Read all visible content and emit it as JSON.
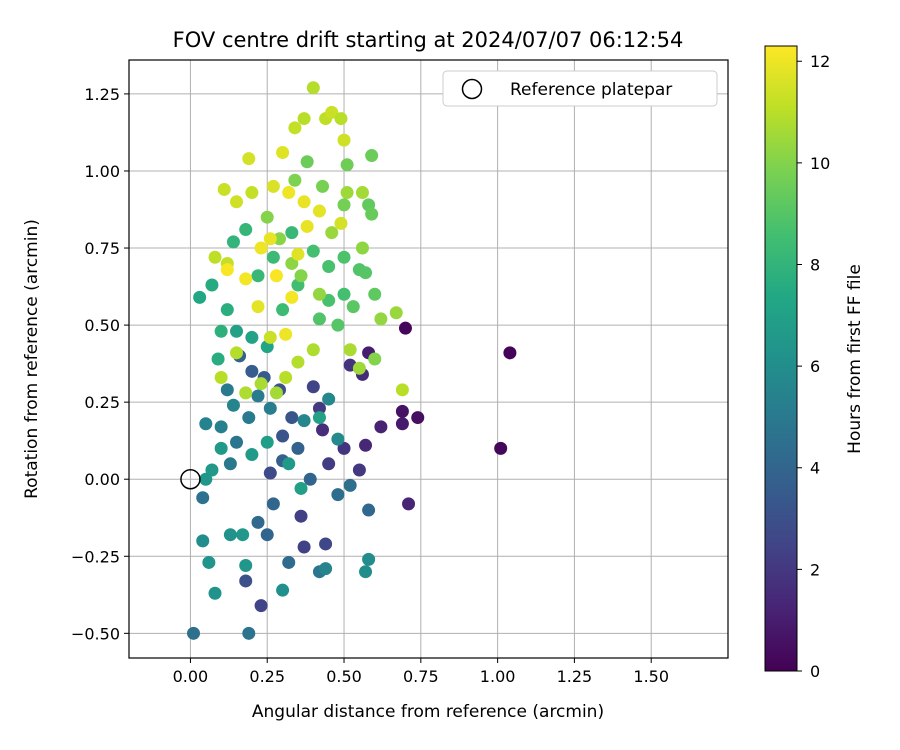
{
  "chart_data": {
    "type": "scatter",
    "title": "FOV centre drift starting at 2024/07/07 06:12:54",
    "xlabel": "Angular distance from reference (arcmin)",
    "ylabel": "Rotation from reference (arcmin)",
    "colorbar_label": "Hours from first FF file",
    "xlim": [
      -0.2,
      1.75
    ],
    "ylim": [
      -0.58,
      1.36
    ],
    "xticks": [
      0.0,
      0.25,
      0.5,
      0.75,
      1.0,
      1.25,
      1.5
    ],
    "xtick_labels": [
      "0.00",
      "0.25",
      "0.50",
      "0.75",
      "1.00",
      "1.25",
      "1.50"
    ],
    "yticks": [
      -0.5,
      -0.25,
      0.0,
      0.25,
      0.5,
      0.75,
      1.0,
      1.25
    ],
    "ytick_labels": [
      "−0.50",
      "−0.25",
      "0.00",
      "0.25",
      "0.50",
      "0.75",
      "1.00",
      "1.25"
    ],
    "colorbar_range": [
      0,
      12.3
    ],
    "colorbar_ticks": [
      0,
      2,
      4,
      6,
      8,
      10,
      12
    ],
    "colorbar_tick_labels": [
      "0",
      "2",
      "4",
      "6",
      "8",
      "10",
      "12"
    ],
    "colormap": "viridis",
    "grid": true,
    "legend": {
      "placement": "top-right",
      "label": "Reference platepar"
    },
    "reference_point": {
      "x": 0.0,
      "y": 0.0
    },
    "points": [
      {
        "x": 0.7,
        "y": 0.49,
        "h": 0.2
      },
      {
        "x": 1.04,
        "y": 0.41,
        "h": 0.1
      },
      {
        "x": 1.01,
        "y": 0.1,
        "h": 0.2
      },
      {
        "x": 0.74,
        "y": 0.2,
        "h": 0.5
      },
      {
        "x": 0.69,
        "y": 0.22,
        "h": 0.6
      },
      {
        "x": 0.69,
        "y": 0.18,
        "h": 0.9
      },
      {
        "x": 0.71,
        "y": -0.08,
        "h": 1.3
      },
      {
        "x": 0.62,
        "y": 0.17,
        "h": 1.2
      },
      {
        "x": 0.57,
        "y": 0.11,
        "h": 1.4
      },
      {
        "x": 0.58,
        "y": 0.41,
        "h": 1.0
      },
      {
        "x": 0.56,
        "y": 0.34,
        "h": 1.5
      },
      {
        "x": 0.52,
        "y": 0.37,
        "h": 1.8
      },
      {
        "x": 0.55,
        "y": 0.03,
        "h": 2.0
      },
      {
        "x": 0.5,
        "y": 0.1,
        "h": 1.9
      },
      {
        "x": 0.45,
        "y": 0.05,
        "h": 2.2
      },
      {
        "x": 0.43,
        "y": 0.16,
        "h": 1.6
      },
      {
        "x": 0.42,
        "y": 0.23,
        "h": 2.1
      },
      {
        "x": 0.4,
        "y": 0.3,
        "h": 2.5
      },
      {
        "x": 0.36,
        "y": -0.12,
        "h": 2.3
      },
      {
        "x": 0.37,
        "y": -0.22,
        "h": 2.4
      },
      {
        "x": 0.44,
        "y": -0.21,
        "h": 2.6
      },
      {
        "x": 0.23,
        "y": -0.41,
        "h": 2.5
      },
      {
        "x": 0.18,
        "y": -0.33,
        "h": 3.0
      },
      {
        "x": 0.26,
        "y": 0.02,
        "h": 2.8
      },
      {
        "x": 0.3,
        "y": 0.14,
        "h": 3.2
      },
      {
        "x": 0.33,
        "y": 0.2,
        "h": 3.3
      },
      {
        "x": 0.29,
        "y": 0.29,
        "h": 3.0
      },
      {
        "x": 0.24,
        "y": 0.33,
        "h": 3.5
      },
      {
        "x": 0.2,
        "y": 0.35,
        "h": 3.6
      },
      {
        "x": 0.16,
        "y": 0.4,
        "h": 3.8
      },
      {
        "x": 0.3,
        "y": 0.06,
        "h": 3.7
      },
      {
        "x": 0.35,
        "y": 0.1,
        "h": 3.9
      },
      {
        "x": 0.39,
        "y": 0.0,
        "h": 4.0
      },
      {
        "x": 0.27,
        "y": -0.08,
        "h": 4.1
      },
      {
        "x": 0.22,
        "y": -0.14,
        "h": 4.2
      },
      {
        "x": 0.32,
        "y": -0.27,
        "h": 4.3
      },
      {
        "x": 0.25,
        "y": -0.18,
        "h": 4.0
      },
      {
        "x": 0.48,
        "y": -0.05,
        "h": 4.4
      },
      {
        "x": 0.52,
        "y": -0.02,
        "h": 4.5
      },
      {
        "x": 0.58,
        "y": -0.1,
        "h": 4.2
      },
      {
        "x": 0.42,
        "y": -0.3,
        "h": 4.8
      },
      {
        "x": 0.04,
        "y": -0.06,
        "h": 4.6
      },
      {
        "x": 0.01,
        "y": -0.5,
        "h": 4.5
      },
      {
        "x": 0.19,
        "y": -0.5,
        "h": 4.7
      },
      {
        "x": 0.13,
        "y": 0.05,
        "h": 4.9
      },
      {
        "x": 0.15,
        "y": 0.12,
        "h": 4.8
      },
      {
        "x": 0.19,
        "y": 0.2,
        "h": 5.0
      },
      {
        "x": 0.22,
        "y": 0.27,
        "h": 5.1
      },
      {
        "x": 0.26,
        "y": 0.23,
        "h": 5.2
      },
      {
        "x": 0.1,
        "y": 0.17,
        "h": 5.3
      },
      {
        "x": 0.05,
        "y": 0.18,
        "h": 5.4
      },
      {
        "x": 0.14,
        "y": 0.24,
        "h": 5.5
      },
      {
        "x": 0.12,
        "y": 0.29,
        "h": 5.0
      },
      {
        "x": 0.37,
        "y": 0.19,
        "h": 5.6
      },
      {
        "x": 0.45,
        "y": 0.26,
        "h": 5.7
      },
      {
        "x": 0.48,
        "y": 0.13,
        "h": 5.8
      },
      {
        "x": 0.58,
        "y": -0.26,
        "h": 5.9
      },
      {
        "x": 0.57,
        "y": -0.3,
        "h": 6.0
      },
      {
        "x": 0.44,
        "y": -0.29,
        "h": 5.5
      },
      {
        "x": 0.3,
        "y": -0.36,
        "h": 6.1
      },
      {
        "x": 0.08,
        "y": -0.37,
        "h": 6.2
      },
      {
        "x": 0.06,
        "y": -0.27,
        "h": 6.3
      },
      {
        "x": 0.04,
        "y": -0.2,
        "h": 5.9
      },
      {
        "x": 0.18,
        "y": -0.28,
        "h": 6.4
      },
      {
        "x": 0.17,
        "y": -0.18,
        "h": 6.5
      },
      {
        "x": 0.13,
        "y": -0.18,
        "h": 6.2
      },
      {
        "x": 0.1,
        "y": 0.1,
        "h": 6.6
      },
      {
        "x": 0.07,
        "y": 0.03,
        "h": 6.5
      },
      {
        "x": 0.05,
        "y": 0.0,
        "h": 6.4
      },
      {
        "x": 0.2,
        "y": 0.08,
        "h": 6.7
      },
      {
        "x": 0.25,
        "y": 0.12,
        "h": 6.8
      },
      {
        "x": 0.32,
        "y": 0.05,
        "h": 6.6
      },
      {
        "x": 0.36,
        "y": -0.03,
        "h": 6.9
      },
      {
        "x": 0.42,
        "y": 0.2,
        "h": 7.0
      },
      {
        "x": 0.15,
        "y": 0.48,
        "h": 7.0
      },
      {
        "x": 0.2,
        "y": 0.46,
        "h": 7.1
      },
      {
        "x": 0.25,
        "y": 0.43,
        "h": 7.2
      },
      {
        "x": 0.03,
        "y": 0.59,
        "h": 7.3
      },
      {
        "x": 0.07,
        "y": 0.63,
        "h": 7.5
      },
      {
        "x": 0.09,
        "y": 0.39,
        "h": 7.6
      },
      {
        "x": 0.12,
        "y": 0.55,
        "h": 7.7
      },
      {
        "x": 0.1,
        "y": 0.48,
        "h": 7.8
      },
      {
        "x": 0.14,
        "y": 0.77,
        "h": 8.0
      },
      {
        "x": 0.18,
        "y": 0.81,
        "h": 8.1
      },
      {
        "x": 0.22,
        "y": 0.66,
        "h": 8.2
      },
      {
        "x": 0.27,
        "y": 0.72,
        "h": 8.3
      },
      {
        "x": 0.3,
        "y": 0.55,
        "h": 8.4
      },
      {
        "x": 0.35,
        "y": 0.63,
        "h": 8.5
      },
      {
        "x": 0.33,
        "y": 0.8,
        "h": 8.2
      },
      {
        "x": 0.4,
        "y": 0.74,
        "h": 8.6
      },
      {
        "x": 0.45,
        "y": 0.69,
        "h": 8.7
      },
      {
        "x": 0.5,
        "y": 0.72,
        "h": 8.8
      },
      {
        "x": 0.55,
        "y": 0.68,
        "h": 8.9
      },
      {
        "x": 0.57,
        "y": 0.67,
        "h": 9.0
      },
      {
        "x": 0.5,
        "y": 0.6,
        "h": 8.6
      },
      {
        "x": 0.45,
        "y": 0.58,
        "h": 8.7
      },
      {
        "x": 0.42,
        "y": 0.52,
        "h": 8.9
      },
      {
        "x": 0.48,
        "y": 0.5,
        "h": 9.0
      },
      {
        "x": 0.53,
        "y": 0.56,
        "h": 9.1
      },
      {
        "x": 0.6,
        "y": 0.6,
        "h": 9.2
      },
      {
        "x": 0.58,
        "y": 0.89,
        "h": 9.3
      },
      {
        "x": 0.59,
        "y": 0.86,
        "h": 9.4
      },
      {
        "x": 0.59,
        "y": 1.05,
        "h": 9.5
      },
      {
        "x": 0.51,
        "y": 1.02,
        "h": 9.6
      },
      {
        "x": 0.5,
        "y": 0.89,
        "h": 9.7
      },
      {
        "x": 0.43,
        "y": 0.95,
        "h": 9.8
      },
      {
        "x": 0.38,
        "y": 1.03,
        "h": 9.5
      },
      {
        "x": 0.34,
        "y": 0.97,
        "h": 9.9
      },
      {
        "x": 0.25,
        "y": 0.85,
        "h": 10.0
      },
      {
        "x": 0.29,
        "y": 0.78,
        "h": 10.1
      },
      {
        "x": 0.33,
        "y": 0.7,
        "h": 10.2
      },
      {
        "x": 0.36,
        "y": 0.66,
        "h": 10.0
      },
      {
        "x": 0.42,
        "y": 0.6,
        "h": 10.3
      },
      {
        "x": 0.46,
        "y": 0.8,
        "h": 10.4
      },
      {
        "x": 0.51,
        "y": 0.93,
        "h": 10.5
      },
      {
        "x": 0.56,
        "y": 0.93,
        "h": 10.6
      },
      {
        "x": 0.56,
        "y": 0.75,
        "h": 10.2
      },
      {
        "x": 0.62,
        "y": 0.52,
        "h": 10.3
      },
      {
        "x": 0.67,
        "y": 0.54,
        "h": 10.4
      },
      {
        "x": 0.6,
        "y": 0.39,
        "h": 10.0
      },
      {
        "x": 0.55,
        "y": 0.36,
        "h": 10.5
      },
      {
        "x": 0.52,
        "y": 0.42,
        "h": 10.7
      },
      {
        "x": 0.4,
        "y": 0.42,
        "h": 10.8
      },
      {
        "x": 0.35,
        "y": 0.38,
        "h": 10.9
      },
      {
        "x": 0.31,
        "y": 0.33,
        "h": 11.0
      },
      {
        "x": 0.28,
        "y": 0.28,
        "h": 10.6
      },
      {
        "x": 0.23,
        "y": 0.31,
        "h": 10.7
      },
      {
        "x": 0.18,
        "y": 0.28,
        "h": 10.8
      },
      {
        "x": 0.15,
        "y": 0.41,
        "h": 10.9
      },
      {
        "x": 0.1,
        "y": 0.33,
        "h": 11.0
      },
      {
        "x": 0.08,
        "y": 0.72,
        "h": 11.1
      },
      {
        "x": 0.12,
        "y": 0.7,
        "h": 11.2
      },
      {
        "x": 0.11,
        "y": 0.94,
        "h": 11.3
      },
      {
        "x": 0.15,
        "y": 0.9,
        "h": 11.4
      },
      {
        "x": 0.19,
        "y": 1.04,
        "h": 11.5
      },
      {
        "x": 0.2,
        "y": 0.93,
        "h": 11.2
      },
      {
        "x": 0.27,
        "y": 0.95,
        "h": 11.6
      },
      {
        "x": 0.3,
        "y": 1.06,
        "h": 11.7
      },
      {
        "x": 0.34,
        "y": 1.14,
        "h": 11.2
      },
      {
        "x": 0.37,
        "y": 1.17,
        "h": 11.0
      },
      {
        "x": 0.4,
        "y": 1.27,
        "h": 10.9
      },
      {
        "x": 0.44,
        "y": 1.17,
        "h": 11.1
      },
      {
        "x": 0.46,
        "y": 1.19,
        "h": 11.3
      },
      {
        "x": 0.49,
        "y": 1.17,
        "h": 11.0
      },
      {
        "x": 0.5,
        "y": 1.1,
        "h": 11.4
      },
      {
        "x": 0.49,
        "y": 0.83,
        "h": 11.5
      },
      {
        "x": 0.42,
        "y": 0.87,
        "h": 11.8
      },
      {
        "x": 0.37,
        "y": 0.9,
        "h": 11.9
      },
      {
        "x": 0.32,
        "y": 0.93,
        "h": 12.0
      },
      {
        "x": 0.26,
        "y": 0.78,
        "h": 11.9
      },
      {
        "x": 0.23,
        "y": 0.75,
        "h": 12.0
      },
      {
        "x": 0.18,
        "y": 0.65,
        "h": 12.1
      },
      {
        "x": 0.12,
        "y": 0.68,
        "h": 12.2
      },
      {
        "x": 0.28,
        "y": 0.66,
        "h": 12.2
      },
      {
        "x": 0.33,
        "y": 0.59,
        "h": 12.1
      },
      {
        "x": 0.31,
        "y": 0.47,
        "h": 12.0
      },
      {
        "x": 0.22,
        "y": 0.56,
        "h": 11.8
      },
      {
        "x": 0.35,
        "y": 0.73,
        "h": 11.7
      },
      {
        "x": 0.38,
        "y": 0.82,
        "h": 11.9
      },
      {
        "x": 0.69,
        "y": 0.29,
        "h": 11.0
      },
      {
        "x": 0.26,
        "y": 0.46,
        "h": 11.3
      }
    ]
  }
}
